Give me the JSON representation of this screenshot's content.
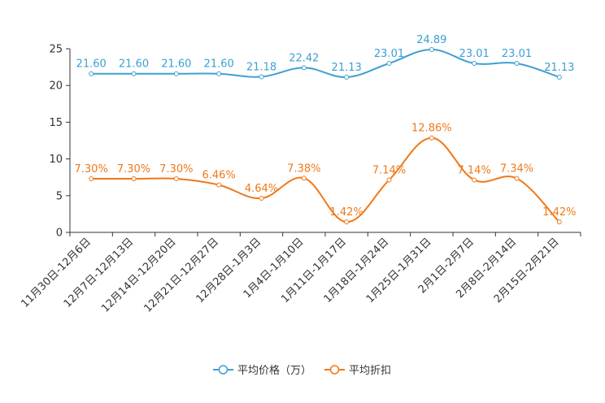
{
  "chart_data": {
    "type": "line",
    "title": "",
    "xlabel": "",
    "ylabel": "",
    "ylim": [
      0,
      25
    ],
    "yticks": [
      0,
      5,
      10,
      15,
      20,
      25
    ],
    "categories": [
      "11月30日-12月6日",
      "12月7日-12月13日",
      "12月14日-12月20日",
      "12月21日-12月27日",
      "12月28日-1月3日",
      "1月4日-1月10日",
      "1月11日-1月17日",
      "1月18日-1月24日",
      "1月25日-1月31日",
      "2月1日-2月7日",
      "2月8日-2月14日",
      "2月15日-2月21日"
    ],
    "series": [
      {
        "name": "平均价格（万）",
        "color": "#3ca0d2",
        "values": [
          21.6,
          21.6,
          21.6,
          21.6,
          21.18,
          22.42,
          21.13,
          23.01,
          24.89,
          23.01,
          23.01,
          21.13
        ],
        "labels": [
          "21.60",
          "21.60",
          "21.60",
          "21.60",
          "21.18",
          "22.42",
          "21.13",
          "23.01",
          "24.89",
          "23.01",
          "23.01",
          "21.13"
        ]
      },
      {
        "name": "平均折扣",
        "color": "#f07818",
        "values": [
          7.3,
          7.3,
          7.3,
          6.46,
          4.64,
          7.38,
          1.42,
          7.14,
          12.86,
          7.14,
          7.34,
          1.42
        ],
        "labels": [
          "7.30%",
          "7.30%",
          "7.30%",
          "6.46%",
          "4.64%",
          "7.38%",
          "1.42%",
          "7.14%",
          "12.86%",
          "7.14%",
          "7.34%",
          "1.42%"
        ]
      }
    ],
    "legend_position": "bottom-center",
    "grid": false
  }
}
